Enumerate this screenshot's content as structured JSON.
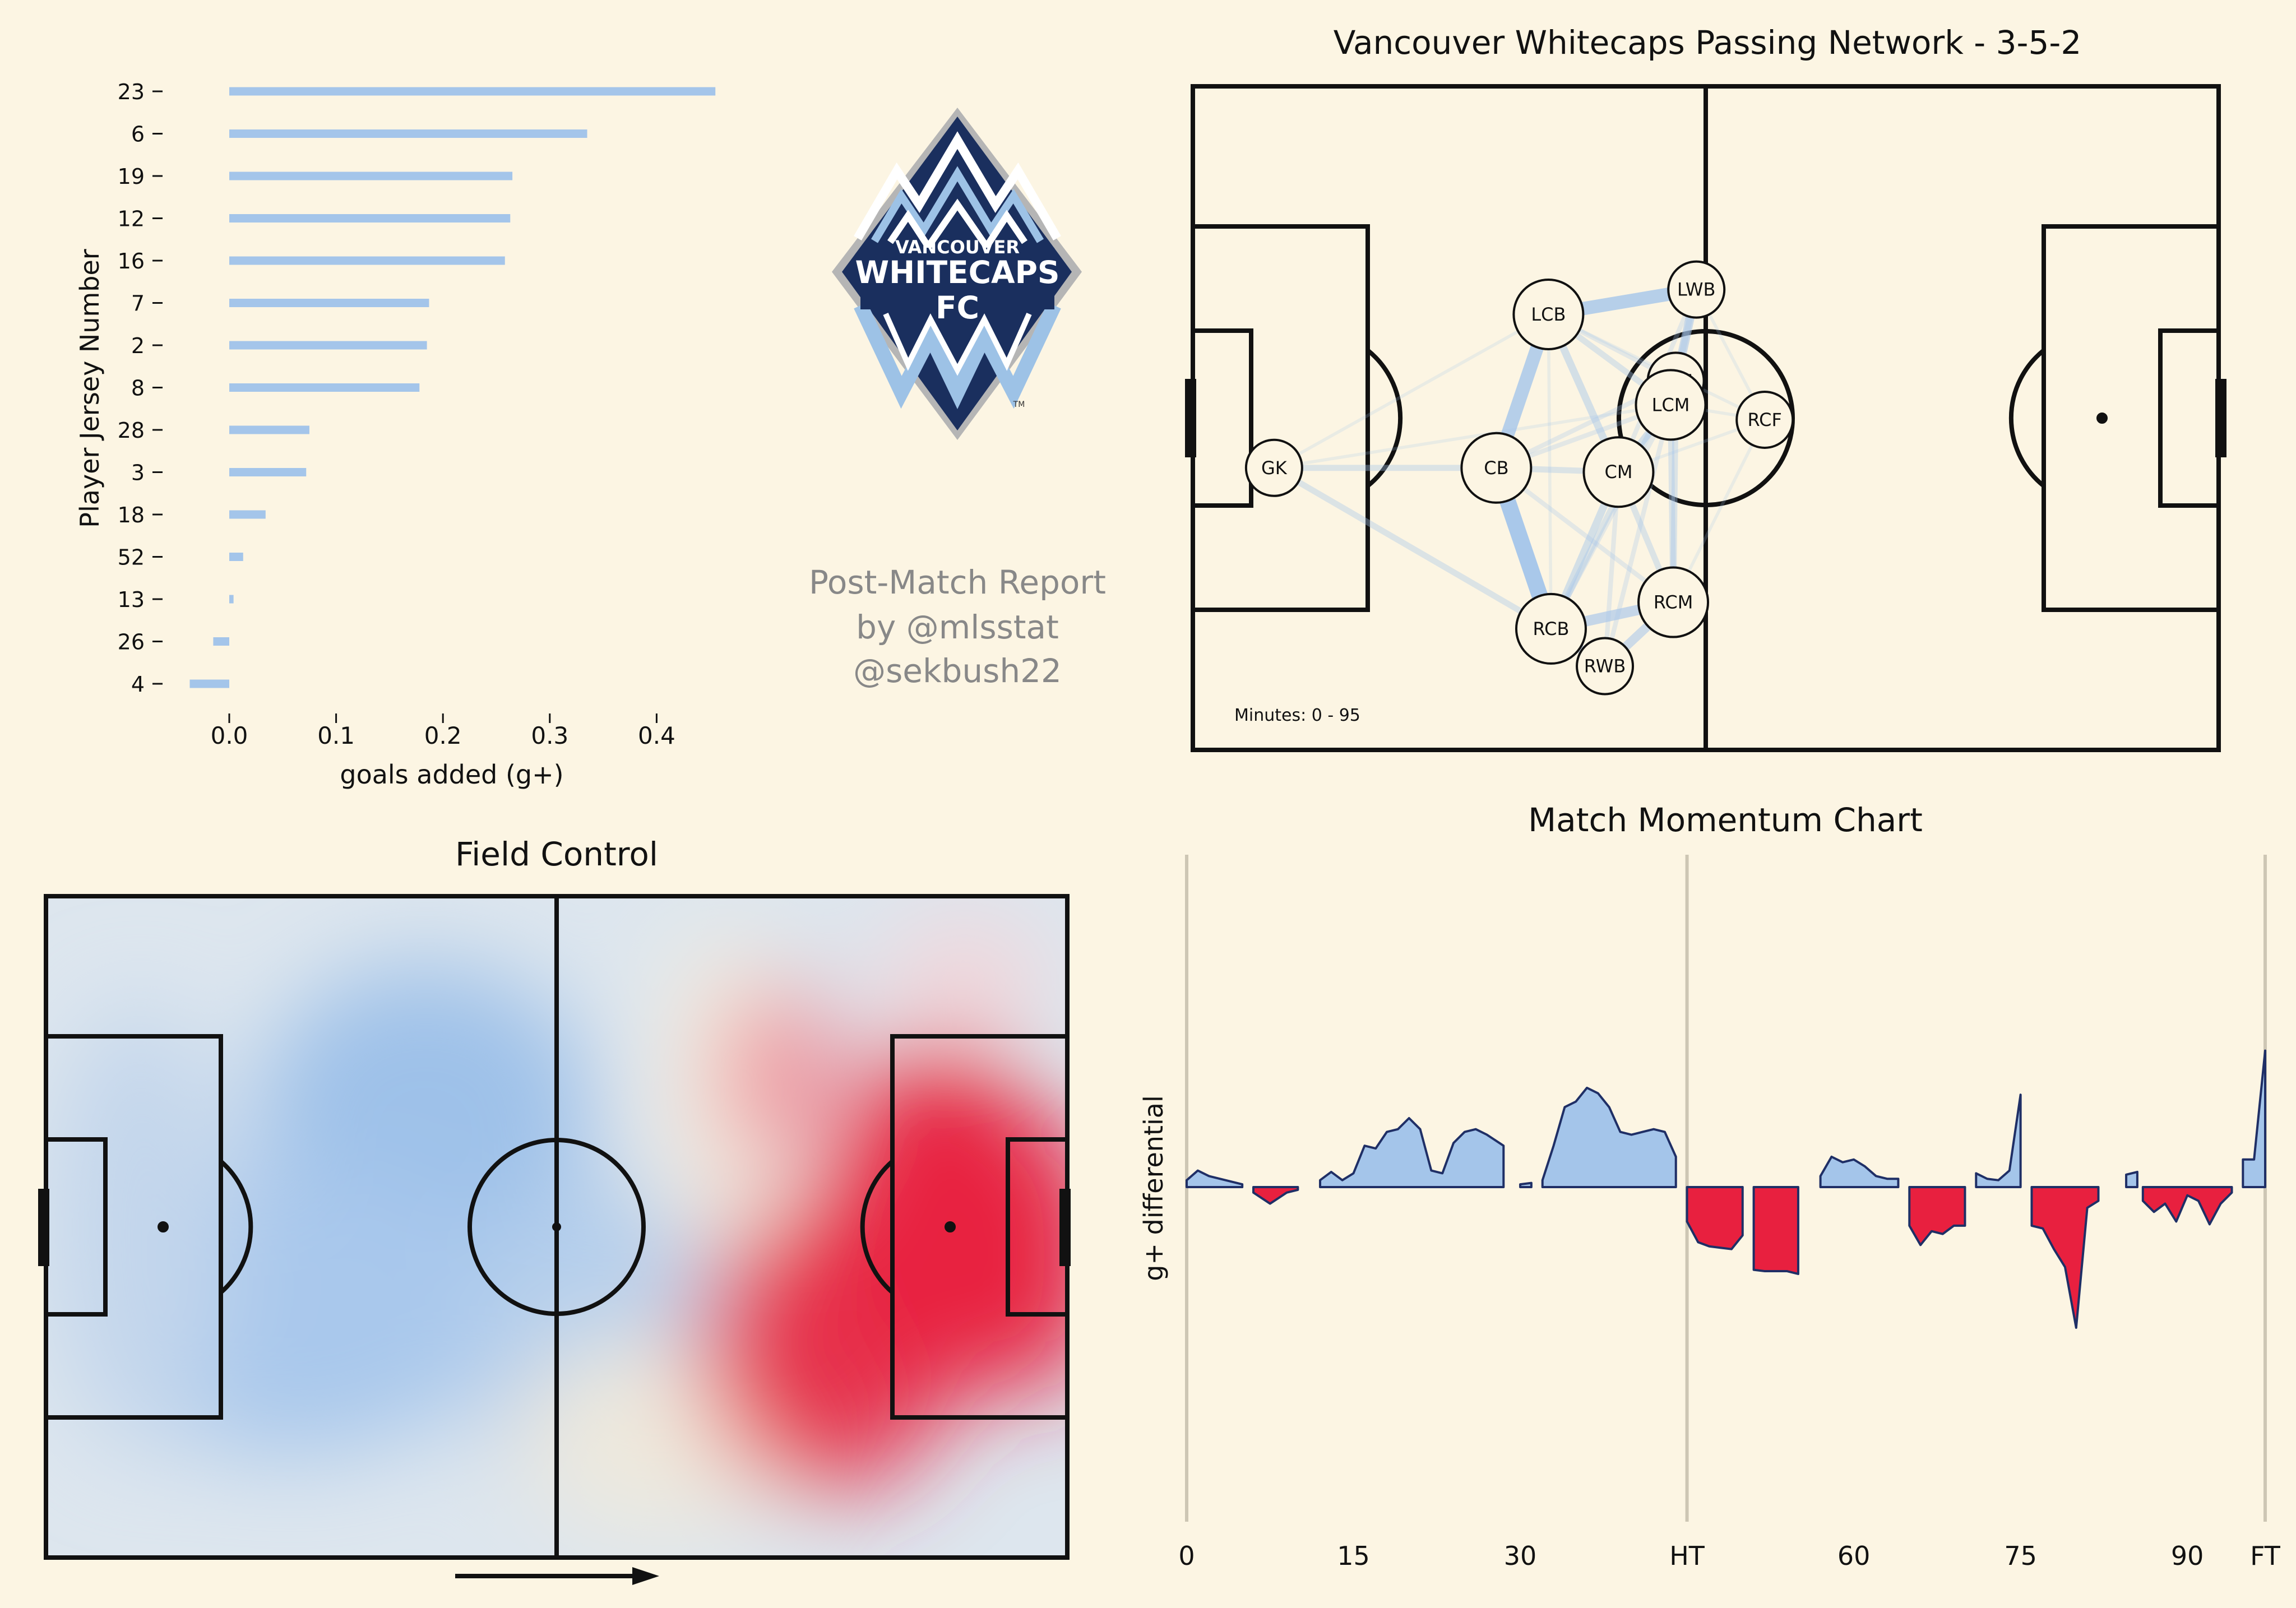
{
  "bar_chart": {
    "type": "bar",
    "orientation": "horizontal",
    "categories": [
      "23",
      "6",
      "19",
      "12",
      "16",
      "7",
      "2",
      "8",
      "28",
      "3",
      "18",
      "52",
      "13",
      "26",
      "4"
    ],
    "values": [
      0.455,
      0.335,
      0.265,
      0.263,
      0.258,
      0.187,
      0.185,
      0.178,
      0.075,
      0.072,
      0.034,
      0.013,
      0.004,
      -0.015,
      -0.037
    ],
    "xlabel": "goals added (g+)",
    "ylabel": "Player Jersey Number",
    "xlim": [
      -0.04,
      0.47
    ],
    "xticks": [
      "0.0",
      "0.1",
      "0.2",
      "0.3",
      "0.4"
    ],
    "bar_color": "#a4c5ea"
  },
  "logo": {
    "line1": "VANCOUVER",
    "line2": "WHITECAPS",
    "line3": "FC",
    "tm": "TM",
    "navy": "#1a2f5e",
    "light_blue": "#9dc2e6"
  },
  "credits": {
    "line1": "Post-Match Report",
    "line2": "by @mlsstat",
    "line3": "@sekbush22"
  },
  "passing_network": {
    "title": "Vancouver Whitecaps Passing Network - 3-5-2",
    "minutes_label": "Minutes: 0 - 95",
    "nodes": [
      {
        "label": "GK",
        "x": 9.5,
        "y": 34
      },
      {
        "label": "CB",
        "x": 35.5,
        "y": 34
      },
      {
        "label": "LCB",
        "x": 41.6,
        "y": 52.5
      },
      {
        "label": "RCB",
        "x": 41.9,
        "y": 14.6
      },
      {
        "label": "LWB",
        "x": 58.9,
        "y": 55.5
      },
      {
        "label": "LCF",
        "x": 56.5,
        "y": 44.5
      },
      {
        "label": "LCM",
        "x": 55.9,
        "y": 41.6
      },
      {
        "label": "CM",
        "x": 49.8,
        "y": 33.5
      },
      {
        "label": "RCF",
        "x": 66.9,
        "y": 39.8
      },
      {
        "label": "RCM",
        "x": 56.2,
        "y": 17.8
      },
      {
        "label": "RWB",
        "x": 48.2,
        "y": 10.1
      }
    ],
    "edges": [
      {
        "from": "CB",
        "to": "RCB",
        "weight": 10
      },
      {
        "from": "CB",
        "to": "LCB",
        "weight": 8
      },
      {
        "from": "LCB",
        "to": "LWB",
        "weight": 8
      },
      {
        "from": "RCB",
        "to": "RWB",
        "weight": 5
      },
      {
        "from": "RCB",
        "to": "RCM",
        "weight": 6
      },
      {
        "from": "RWB",
        "to": "RCM",
        "weight": 5
      },
      {
        "from": "LWB",
        "to": "LCM",
        "weight": 5
      },
      {
        "from": "LCB",
        "to": "CM",
        "weight": 4
      },
      {
        "from": "LCB",
        "to": "LCM",
        "weight": 3
      },
      {
        "from": "GK",
        "to": "CB",
        "weight": 3
      },
      {
        "from": "GK",
        "to": "RCB",
        "weight": 3
      },
      {
        "from": "CM",
        "to": "RCB",
        "weight": 4
      },
      {
        "from": "CM",
        "to": "LCM",
        "weight": 4
      },
      {
        "from": "CM",
        "to": "RCM",
        "weight": 3
      },
      {
        "from": "LCM",
        "to": "RCM",
        "weight": 3
      },
      {
        "from": "LCF",
        "to": "RCM",
        "weight": 3
      },
      {
        "from": "CB",
        "to": "CM",
        "weight": 3
      },
      {
        "from": "CB",
        "to": "LCM",
        "weight": 2
      },
      {
        "from": "LCF",
        "to": "RCB",
        "weight": 3
      },
      {
        "from": "LCM",
        "to": "RWB",
        "weight": 2
      },
      {
        "from": "GK",
        "to": "LCB",
        "weight": 1
      },
      {
        "from": "GK",
        "to": "LCM",
        "weight": 1
      },
      {
        "from": "LWB",
        "to": "LCF",
        "weight": 3
      },
      {
        "from": "LWB",
        "to": "RCF",
        "weight": 1
      },
      {
        "from": "LCM",
        "to": "RCF",
        "weight": 1
      },
      {
        "from": "CM",
        "to": "RCF",
        "weight": 1
      },
      {
        "from": "RCB",
        "to": "LCM",
        "weight": 2
      },
      {
        "from": "CB",
        "to": "RCM",
        "weight": 2
      },
      {
        "from": "LCB",
        "to": "LCF",
        "weight": 2
      },
      {
        "from": "LCB",
        "to": "RCF",
        "weight": 1
      },
      {
        "from": "RWB",
        "to": "CM",
        "weight": 2
      },
      {
        "from": "LWB",
        "to": "CM",
        "weight": 2
      },
      {
        "from": "CB",
        "to": "LCF",
        "weight": 2
      },
      {
        "from": "RCM",
        "to": "RCF",
        "weight": 1
      },
      {
        "from": "RCB",
        "to": "LCB",
        "weight": 1
      }
    ]
  },
  "field_control": {
    "title": "Field Control",
    "home_color": "#a4c5ea",
    "away_color": "#e8203f"
  },
  "momentum": {
    "type": "area",
    "title": "Match Momentum Chart",
    "ylabel": "g+ differential",
    "xticks": [
      "0",
      "15",
      "30",
      "HT",
      "60",
      "75",
      "90",
      "FT"
    ],
    "home_color": "#a4c5ea",
    "away_color": "#e8203f",
    "edge_color": "#1f2f66",
    "ylim": [
      -1.0,
      1.0
    ],
    "segments": [
      {
        "side": "home",
        "x": [
          0,
          1,
          2,
          5
        ],
        "y": [
          0.05,
          0.12,
          0.08,
          0.02
        ]
      },
      {
        "side": "away",
        "x": [
          6,
          7.5,
          9,
          10
        ],
        "y": [
          -0.04,
          -0.12,
          -0.04,
          -0.02
        ]
      },
      {
        "side": "home",
        "x": [
          12,
          13,
          14,
          15,
          16,
          17,
          18,
          19,
          20,
          21,
          22,
          23,
          24,
          25,
          26,
          27,
          28.5
        ],
        "y": [
          0.05,
          0.11,
          0.05,
          0.1,
          0.3,
          0.28,
          0.4,
          0.42,
          0.5,
          0.42,
          0.12,
          0.1,
          0.32,
          0.4,
          0.42,
          0.38,
          0.3
        ]
      },
      {
        "side": "home",
        "x": [
          30,
          31
        ],
        "y": [
          0.02,
          0.03
        ]
      },
      {
        "side": "home",
        "x": [
          32,
          33,
          34,
          35,
          36,
          37,
          38,
          39,
          40,
          41,
          42,
          43,
          44
        ],
        "y": [
          0.05,
          0.3,
          0.58,
          0.62,
          0.72,
          0.68,
          0.58,
          0.4,
          0.38,
          0.4,
          0.42,
          0.4,
          0.22
        ]
      },
      {
        "side": "away",
        "x": [
          45,
          46,
          47,
          48,
          49,
          50
        ],
        "y": [
          -0.25,
          -0.4,
          -0.43,
          -0.44,
          -0.45,
          -0.35
        ]
      },
      {
        "side": "away",
        "x": [
          51,
          52,
          53,
          54,
          55
        ],
        "y": [
          -0.6,
          -0.61,
          -0.61,
          -0.61,
          -0.63
        ]
      },
      {
        "side": "home",
        "x": [
          57,
          58,
          59,
          60,
          61,
          62,
          63,
          64
        ],
        "y": [
          0.08,
          0.22,
          0.18,
          0.2,
          0.15,
          0.08,
          0.06,
          0.06
        ]
      },
      {
        "side": "away",
        "x": [
          65,
          66,
          67,
          68,
          69,
          70
        ],
        "y": [
          -0.28,
          -0.42,
          -0.32,
          -0.34,
          -0.28,
          -0.28
        ]
      },
      {
        "side": "home",
        "x": [
          71,
          72,
          73,
          74,
          75
        ],
        "y": [
          0.1,
          0.06,
          0.05,
          0.12,
          0.67
        ]
      },
      {
        "side": "away",
        "x": [
          76,
          77,
          78,
          79,
          80,
          81,
          82
        ],
        "y": [
          -0.28,
          -0.3,
          -0.45,
          -0.58,
          -1.02,
          -0.15,
          -0.1
        ]
      },
      {
        "side": "home",
        "x": [
          84.5,
          85.5
        ],
        "y": [
          0.09,
          0.11
        ]
      },
      {
        "side": "away",
        "x": [
          86,
          87,
          88,
          89,
          90,
          91,
          92,
          93,
          94
        ],
        "y": [
          -0.1,
          -0.18,
          -0.12,
          -0.25,
          -0.06,
          -0.1,
          -0.27,
          -0.12,
          -0.04
        ]
      },
      {
        "side": "home",
        "x": [
          95,
          96,
          97
        ],
        "y": [
          0.2,
          0.2,
          0.99
        ]
      }
    ]
  }
}
